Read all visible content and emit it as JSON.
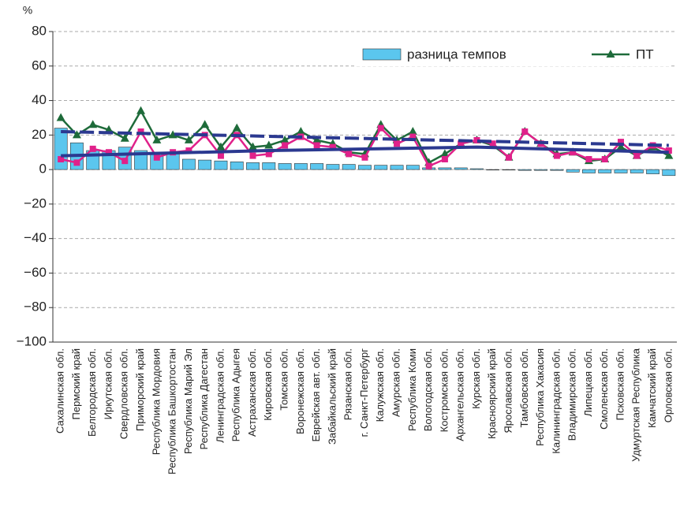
{
  "chart_data": {
    "type": "bar-line",
    "y_label": "%",
    "categories": [
      "Сахалинская обл.",
      "Пермский край",
      "Белгородская обл.",
      "Иркутская обл.",
      "Свердловская обл.",
      "Приморский край",
      "Республика Мордовия",
      "Республика Башкортостан",
      "Республика Марий Эл",
      "Республика Дагестан",
      "Ленинградская обл.",
      "Республика Адыгея",
      "Астраханская обл.",
      "Кировская обл.",
      "Томская обл.",
      "Воронежская обл.",
      "Еврейская авт. обл.",
      "Забайкальский край",
      "Рязанская обл.",
      "г. Санкт-Петербург",
      "Калужская обл.",
      "Амурская обл.",
      "Республика Коми",
      "Вологодская обл.",
      "Костромская обл.",
      "Архангельская обл.",
      "Курская обл.",
      "Красноярский край",
      "Ярославская обл.",
      "Тамбовская обл.",
      "Республика Хакасия",
      "Калининградская обл.",
      "Владимирская обл.",
      "Липецкая обл.",
      "Смоленская обл.",
      "Псковская обл.",
      "Удмуртская Республика",
      "Камчатский край",
      "Орловская обл."
    ],
    "series": [
      {
        "name": "разница темпов",
        "kind": "bar",
        "color": "#5bc6ee",
        "values": [
          24,
          15.5,
          11,
          11,
          13,
          11,
          10,
          10,
          6,
          5.5,
          5,
          4.5,
          4,
          4,
          3.5,
          3.5,
          3.5,
          3,
          3,
          2.5,
          2.5,
          2.5,
          2.5,
          1,
          1,
          1,
          0.5,
          -0.3,
          -0.3,
          -0.5,
          -0.5,
          -0.5,
          -1.5,
          -2,
          -2,
          -2,
          -2,
          -2.5,
          -3.5
        ]
      },
      {
        "name": "ПТ",
        "kind": "line",
        "marker": "triangle",
        "color": "#1e6b3a",
        "values": [
          30,
          20,
          26,
          23,
          18,
          34,
          17,
          20,
          17,
          26,
          13,
          24,
          13,
          14,
          17,
          22,
          17,
          15,
          10,
          9,
          26,
          17,
          22,
          4,
          9,
          15,
          17,
          14,
          7,
          22,
          15,
          9,
          10,
          5,
          6,
          13,
          8,
          13,
          8
        ]
      },
      {
        "kind": "line",
        "marker": "square",
        "color": "#e0218a",
        "values": [
          6,
          4,
          12,
          10,
          5,
          22,
          7,
          10,
          11,
          20,
          8,
          20,
          8,
          9,
          14,
          19,
          14,
          13,
          9,
          7,
          24,
          15,
          19,
          2,
          6,
          15,
          17,
          15,
          7,
          22,
          15,
          8,
          10,
          6,
          6,
          16,
          8,
          14,
          11
        ]
      }
    ],
    "trends": [
      {
        "color": "#2b3990",
        "dashed": true,
        "x": [
          0,
          38
        ],
        "values": [
          22,
          14
        ]
      },
      {
        "color": "#2b3990",
        "dashed": false,
        "x": [
          0,
          13,
          26,
          38
        ],
        "values": [
          8,
          11,
          13,
          10
        ]
      }
    ],
    "ylim": [
      -100,
      80
    ],
    "yticks": [
      {
        "value": -100,
        "label": "−100"
      },
      {
        "value": -80,
        "label": "−80"
      },
      {
        "value": -60,
        "label": "−60"
      },
      {
        "value": -40,
        "label": "−40"
      },
      {
        "value": -20,
        "label": "−20"
      },
      0,
      20,
      40,
      60,
      80
    ],
    "grid": true
  }
}
